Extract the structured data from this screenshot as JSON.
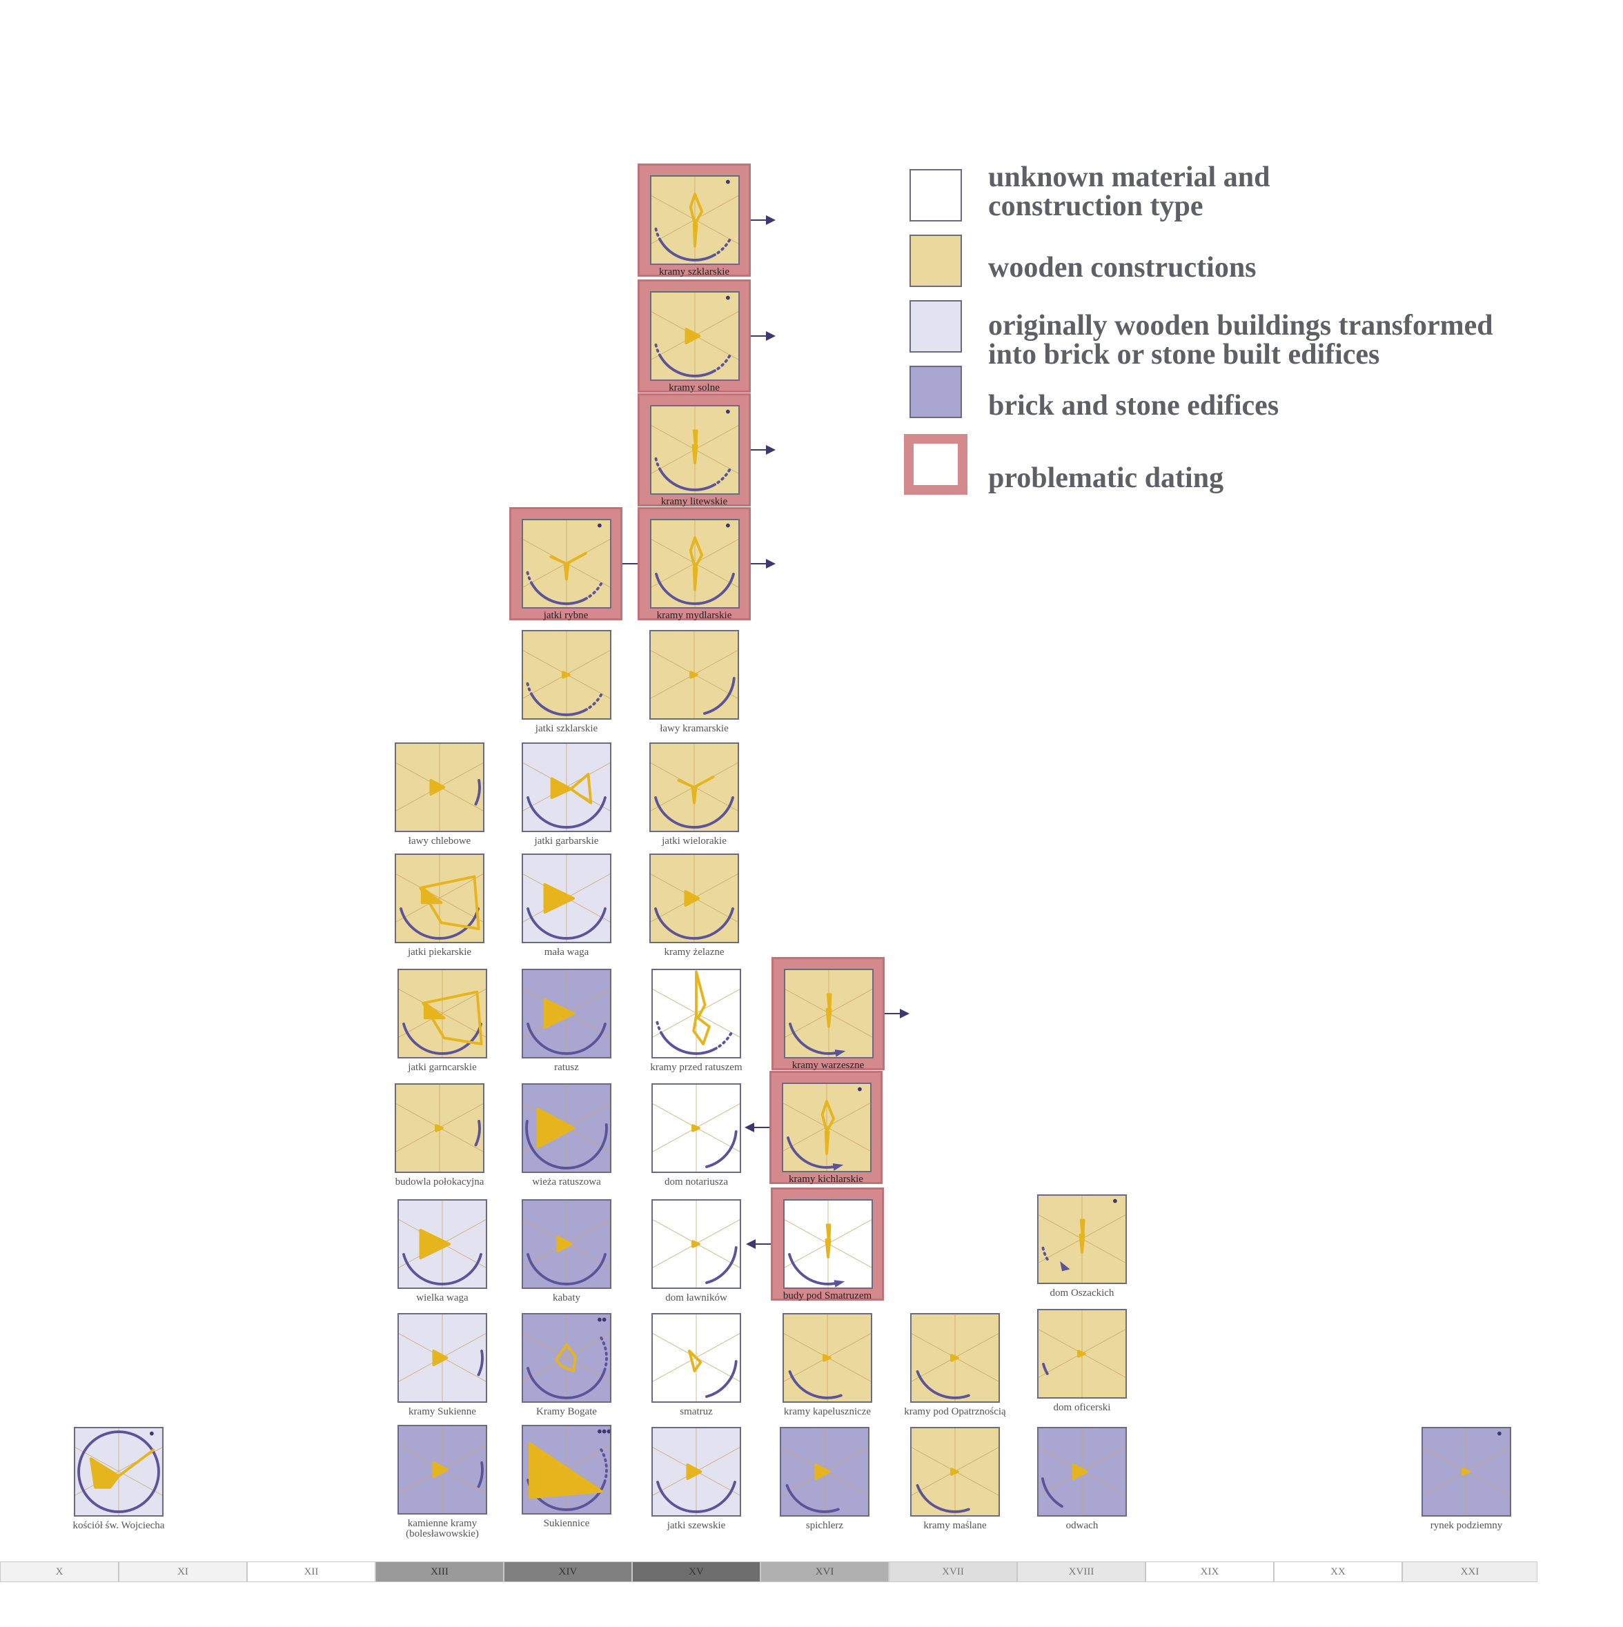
{
  "legend": {
    "items": [
      {
        "key": "unknown",
        "label": "unknown material and\nconstruction type",
        "color": "#ffffff"
      },
      {
        "key": "wooden",
        "label": "wooden constructions",
        "color": "#ead89c"
      },
      {
        "key": "transformed",
        "label": "originally wooden buildings transformed\ninto brick or stone built edifices",
        "color": "#e3e2f0"
      },
      {
        "key": "brick",
        "label": "brick and stone edifices",
        "color": "#aaa6d2"
      },
      {
        "key": "problematic",
        "label": "problematic dating",
        "color": "#d4898d"
      }
    ]
  },
  "colors": {
    "wooden": "#ead89c",
    "transformed": "#e3e2f0",
    "brick": "#aaa6d2",
    "unknown": "#ffffff",
    "frame": "#d4898d",
    "glyph": "#e6b51e",
    "arc": "#5b5499",
    "arrow": "#3d3870"
  },
  "timeline": [
    {
      "label": "X",
      "shade": "#f2f2f2",
      "text": "#777"
    },
    {
      "label": "XI",
      "shade": "#f2f2f2",
      "text": "#777"
    },
    {
      "label": "XII",
      "shade": "#ffffff",
      "text": "#777"
    },
    {
      "label": "XIII",
      "shade": "#9a9a9a",
      "text": "#333"
    },
    {
      "label": "XIV",
      "shade": "#808080",
      "text": "#333"
    },
    {
      "label": "XV",
      "shade": "#6e6e6e",
      "text": "#333"
    },
    {
      "label": "XVI",
      "shade": "#b0b0b0",
      "text": "#555"
    },
    {
      "label": "XVII",
      "shade": "#dedede",
      "text": "#777"
    },
    {
      "label": "XVIII",
      "shade": "#e6e6e6",
      "text": "#777"
    },
    {
      "label": "XIX",
      "shade": "#ffffff",
      "text": "#777"
    },
    {
      "label": "XX",
      "shade": "#ffffff",
      "text": "#777"
    },
    {
      "label": "XXI",
      "shade": "#eeeeee",
      "text": "#777"
    }
  ],
  "buildings": [
    {
      "name": "kramy szklarskie",
      "material": "wooden",
      "problematic": true,
      "arrow": "right",
      "glyph": "diamond",
      "arc": "dotted",
      "dots": 1
    },
    {
      "name": "kramy solne",
      "material": "wooden",
      "problematic": true,
      "arrow": "right",
      "glyph": "triangle-small",
      "arc": "dotted",
      "dots": 1
    },
    {
      "name": "kramy litewskie",
      "material": "wooden",
      "problematic": true,
      "arrow": "right",
      "glyph": "spike",
      "arc": "dotted",
      "dots": 1
    },
    {
      "name": "jatki rybne",
      "material": "wooden",
      "problematic": true,
      "arrow": "right",
      "glyph": "star",
      "arc": "dotted",
      "dots": 1
    },
    {
      "name": "kramy mydlarskie",
      "material": "wooden",
      "problematic": true,
      "arrow": "right",
      "glyph": "diamond",
      "arc": "solid",
      "dots": 1
    },
    {
      "name": "jatki szklarskie",
      "material": "wooden",
      "problematic": false,
      "arrow": "",
      "glyph": "dot",
      "arc": "dotted",
      "dots": 0
    },
    {
      "name": "ławy kramarskie",
      "material": "wooden",
      "problematic": false,
      "arrow": "",
      "glyph": "dot",
      "arc": "short",
      "dots": 0
    },
    {
      "name": "ławy chlebowe",
      "material": "wooden",
      "problematic": false,
      "arrow": "",
      "glyph": "triangle-small",
      "arc": "tick",
      "dots": 0
    },
    {
      "name": "jatki garbarskie",
      "material": "transformed",
      "problematic": false,
      "arrow": "",
      "glyph": "bowtie",
      "arc": "solid",
      "dots": 0
    },
    {
      "name": "jatki wielorakie",
      "material": "wooden",
      "problematic": false,
      "arrow": "",
      "glyph": "star",
      "arc": "solid",
      "dots": 0
    },
    {
      "name": "jatki piekarskie",
      "material": "wooden",
      "problematic": false,
      "arrow": "",
      "glyph": "kite",
      "arc": "solid",
      "dots": 0
    },
    {
      "name": "mała waga",
      "material": "transformed",
      "problematic": false,
      "arrow": "",
      "glyph": "triangle",
      "arc": "solid",
      "dots": 0
    },
    {
      "name": "kramy żelazne",
      "material": "wooden",
      "problematic": false,
      "arrow": "",
      "glyph": "triangle-small",
      "arc": "solid",
      "dots": 0
    },
    {
      "name": "jatki garncarskie",
      "material": "wooden",
      "problematic": false,
      "arrow": "",
      "glyph": "kite",
      "arc": "solid",
      "dots": 0
    },
    {
      "name": "ratusz",
      "material": "brick",
      "problematic": false,
      "arrow": "",
      "glyph": "triangle",
      "arc": "solid",
      "dots": 0
    },
    {
      "name": "kramy przed ratuszem",
      "material": "unknown",
      "problematic": false,
      "arrow": "",
      "glyph": "zigzag",
      "arc": "dotted",
      "dots": 0
    },
    {
      "name": "kramy warzeszne",
      "material": "wooden",
      "problematic": true,
      "arrow": "right",
      "glyph": "spike",
      "arc": "arrowed",
      "dots": 0
    },
    {
      "name": "budowla połokacyjna",
      "material": "wooden",
      "problematic": false,
      "arrow": "",
      "glyph": "dot",
      "arc": "tick",
      "dots": 0
    },
    {
      "name": "wieża ratuszowa",
      "material": "brick",
      "problematic": false,
      "arrow": "",
      "glyph": "triangle-big",
      "arc": "full",
      "dots": 0
    },
    {
      "name": "dom notariusza",
      "material": "unknown",
      "problematic": false,
      "arrow": "",
      "glyph": "dot",
      "arc": "short",
      "dots": 0
    },
    {
      "name": "kramy kichlarskie",
      "material": "wooden",
      "problematic": true,
      "arrow": "left",
      "glyph": "diamond",
      "arc": "arrowed",
      "dots": 1
    },
    {
      "name": "wielka waga",
      "material": "transformed",
      "problematic": false,
      "arrow": "",
      "glyph": "triangle",
      "arc": "solid",
      "dots": 0
    },
    {
      "name": "kabaty",
      "material": "brick",
      "problematic": false,
      "arrow": "",
      "glyph": "triangle-small",
      "arc": "solid",
      "dots": 0
    },
    {
      "name": "dom ławników",
      "material": "unknown",
      "problematic": false,
      "arrow": "",
      "glyph": "dot",
      "arc": "short",
      "dots": 0
    },
    {
      "name": "budy pod Smatruzem",
      "material": "unknown",
      "problematic": true,
      "arrow": "left",
      "glyph": "spike",
      "arc": "arrowed",
      "dots": 0
    },
    {
      "name": "dom Oszackich",
      "material": "wooden",
      "problematic": false,
      "arrow": "",
      "glyph": "spike",
      "arc": "arrowed-dot",
      "dots": 1
    },
    {
      "name": "kramy Sukienne",
      "material": "transformed",
      "problematic": false,
      "arrow": "",
      "glyph": "triangle-small",
      "arc": "tick",
      "dots": 0
    },
    {
      "name": "Kramy Bogate",
      "material": "brick",
      "problematic": false,
      "arrow": "",
      "glyph": "pentagon",
      "arc": "solid-dotted",
      "dots": 2
    },
    {
      "name": "smatruz",
      "material": "unknown",
      "problematic": false,
      "arrow": "",
      "glyph": "wedge",
      "arc": "short",
      "dots": 0
    },
    {
      "name": "kramy kapelusznicze",
      "material": "wooden",
      "problematic": false,
      "arrow": "",
      "glyph": "dot",
      "arc": "solid-left",
      "dots": 0
    },
    {
      "name": "kramy pod Opatrznością",
      "material": "wooden",
      "problematic": false,
      "arrow": "",
      "glyph": "dot",
      "arc": "solid-left",
      "dots": 0
    },
    {
      "name": "dom oficerski",
      "material": "wooden",
      "problematic": false,
      "arrow": "",
      "glyph": "dot",
      "arc": "dash",
      "dots": 0
    },
    {
      "name": "kościół św. Wojciecha",
      "material": "transformed",
      "problematic": false,
      "arrow": "",
      "glyph": "flag",
      "arc": "circle",
      "dots": 1
    },
    {
      "name": "kamienne kramy\n(bolesławowskie)",
      "material": "brick",
      "problematic": false,
      "arrow": "",
      "glyph": "triangle-small",
      "arc": "tick",
      "dots": 0
    },
    {
      "name": "Sukiennice",
      "material": "brick",
      "problematic": false,
      "arrow": "",
      "glyph": "sail",
      "arc": "solid-dotted",
      "dots": 3
    },
    {
      "name": "jatki szewskie",
      "material": "transformed",
      "problematic": false,
      "arrow": "",
      "glyph": "triangle-small",
      "arc": "solid",
      "dots": 0
    },
    {
      "name": "spichlerz",
      "material": "brick",
      "problematic": false,
      "arrow": "",
      "glyph": "triangle-small",
      "arc": "solid-left",
      "dots": 0
    },
    {
      "name": "kramy maślane",
      "material": "wooden",
      "problematic": false,
      "arrow": "",
      "glyph": "dot",
      "arc": "solid-left",
      "dots": 0
    },
    {
      "name": "odwach",
      "material": "brick",
      "problematic": false,
      "arrow": "",
      "glyph": "triangle-small",
      "arc": "left-tick",
      "dots": 0
    },
    {
      "name": "rynek podziemny",
      "material": "brick",
      "problematic": false,
      "arrow": "",
      "glyph": "dot",
      "arc": "none",
      "dots": 1
    }
  ]
}
